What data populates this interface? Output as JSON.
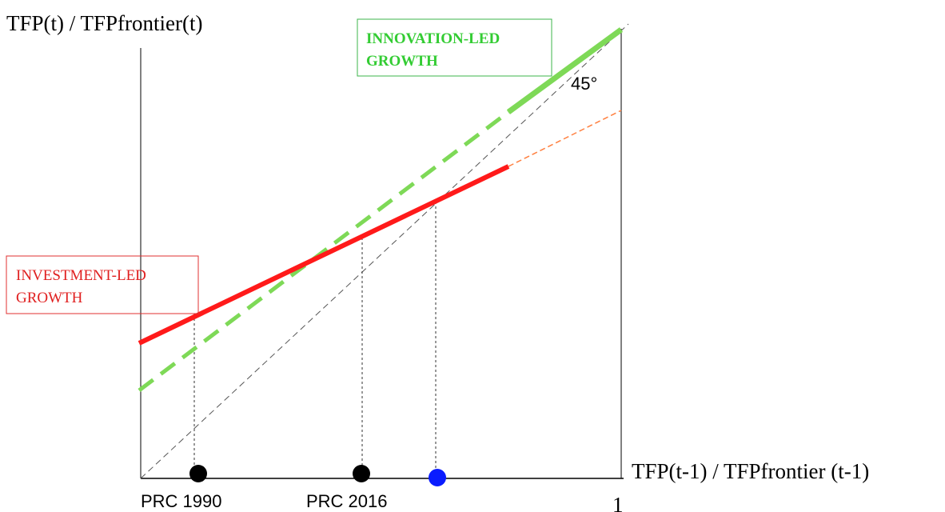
{
  "axes": {
    "y_label": "TFP(t) / TFPfrontier(t)",
    "x_label": "TFP(t-1) / TFPfrontier (t-1)",
    "x_end": "1"
  },
  "angle_label": "45°",
  "innovation": {
    "line1": "INNOVATION-LED",
    "line2": "GROWTH"
  },
  "investment": {
    "line1": "INVESTMENT-LED",
    "line2": "GROWTH"
  },
  "points": [
    "PRC 1990",
    "PRC 2016"
  ]
}
